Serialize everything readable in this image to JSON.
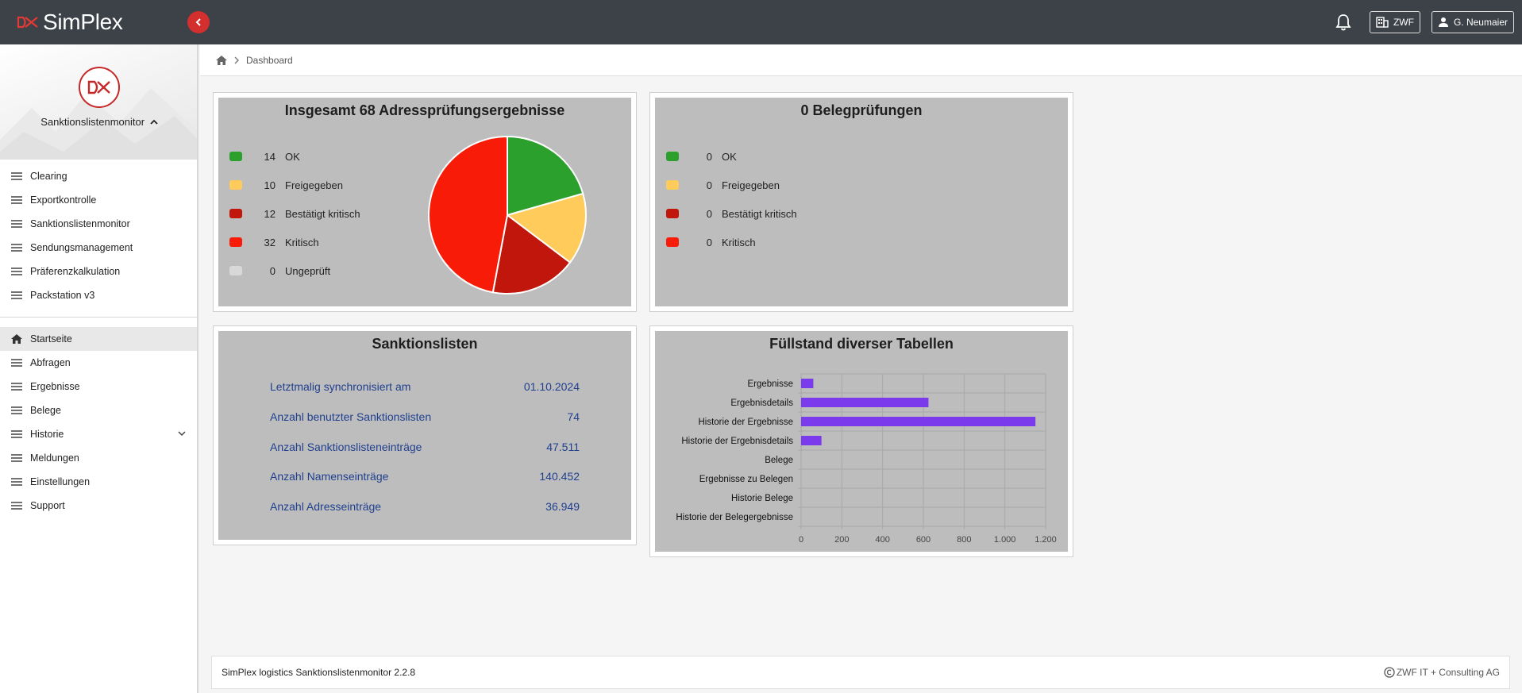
{
  "app": {
    "name": "SimPlex"
  },
  "topbar": {
    "org_label": "ZWF",
    "user_label": "G. Neumaier"
  },
  "sidebar": {
    "profile_name": "Sanktionslistenmonitor",
    "modules": [
      "Clearing",
      "Exportkontrolle",
      "Sanktionslistenmonitor",
      "Sendungsmanagement",
      "Präferenzkalkulation",
      "Packstation v3"
    ],
    "nav": [
      {
        "label": "Startseite",
        "icon": "home-icon",
        "active": true
      },
      {
        "label": "Abfragen",
        "icon": "menu-icon"
      },
      {
        "label": "Ergebnisse",
        "icon": "menu-icon"
      },
      {
        "label": "Belege",
        "icon": "menu-icon"
      },
      {
        "label": "Historie",
        "icon": "menu-icon",
        "expandable": true
      },
      {
        "label": "Meldungen",
        "icon": "menu-icon"
      },
      {
        "label": "Einstellungen",
        "icon": "menu-icon"
      },
      {
        "label": "Support",
        "icon": "menu-icon"
      }
    ]
  },
  "breadcrumb": {
    "current": "Dashboard"
  },
  "cards": {
    "address": {
      "title": "Insgesamt 68 Adressprüfungsergebnisse",
      "legend": [
        {
          "count": "14",
          "label": "OK",
          "color": "#2ca02c"
        },
        {
          "count": "10",
          "label": "Freigegeben",
          "color": "#ffcc5c"
        },
        {
          "count": "12",
          "label": "Bestätigt kritisch",
          "color": "#c0160c"
        },
        {
          "count": "32",
          "label": "Kritisch",
          "color": "#f81c08"
        },
        {
          "count": "0",
          "label": "Ungeprüft",
          "color": "#d8d8d8"
        }
      ]
    },
    "belege": {
      "title": "0 Belegprüfungen",
      "legend": [
        {
          "count": "0",
          "label": "OK",
          "color": "#2ca02c"
        },
        {
          "count": "0",
          "label": "Freigegeben",
          "color": "#ffcc5c"
        },
        {
          "count": "0",
          "label": "Bestätigt kritisch",
          "color": "#c0160c"
        },
        {
          "count": "0",
          "label": "Kritisch",
          "color": "#f81c08"
        }
      ]
    },
    "sanktionslisten": {
      "title": "Sanktionslisten",
      "rows": [
        {
          "label": "Letztmalig synchronisiert am",
          "value": "01.10.2024"
        },
        {
          "label": "Anzahl benutzter Sanktionslisten",
          "value": "74"
        },
        {
          "label": "Anzahl Sanktionslisteneinträge",
          "value": "47.511"
        },
        {
          "label": "Anzahl Namenseinträge",
          "value": "140.452"
        },
        {
          "label": "Anzahl Adresseinträge",
          "value": "36.949"
        }
      ]
    },
    "tables": {
      "title": "Füllstand diverser Tabellen"
    }
  },
  "chart_data": [
    {
      "type": "pie",
      "title": "Insgesamt 68 Adressprüfungsergebnisse",
      "categories": [
        "OK",
        "Freigegeben",
        "Bestätigt kritisch",
        "Kritisch",
        "Ungeprüft"
      ],
      "values": [
        14,
        10,
        12,
        32,
        0
      ],
      "colors": [
        "#2ca02c",
        "#ffcc5c",
        "#c0160c",
        "#f81c08",
        "#d8d8d8"
      ],
      "legend": "left"
    },
    {
      "type": "bar",
      "orientation": "horizontal",
      "title": "Füllstand diverser Tabellen",
      "categories": [
        "Ergebnisse",
        "Ergebnisdetails",
        "Historie der Ergebnisse",
        "Historie der Ergebnisdetails",
        "Belege",
        "Ergebnisse zu Belegen",
        "Historie Belege",
        "Historie der Belegergebnisse"
      ],
      "values": [
        60,
        625,
        1150,
        100,
        0,
        0,
        0,
        0
      ],
      "xlim": [
        0,
        1200
      ],
      "xticks": [
        "0",
        "200",
        "400",
        "600",
        "800",
        "1.000",
        "1.200"
      ],
      "color": "#7c3aed",
      "grid": true
    }
  ],
  "footer": {
    "left": "SimPlex logistics Sanktionslistenmonitor 2.2.8",
    "right": "ZWF IT + Consulting AG"
  }
}
